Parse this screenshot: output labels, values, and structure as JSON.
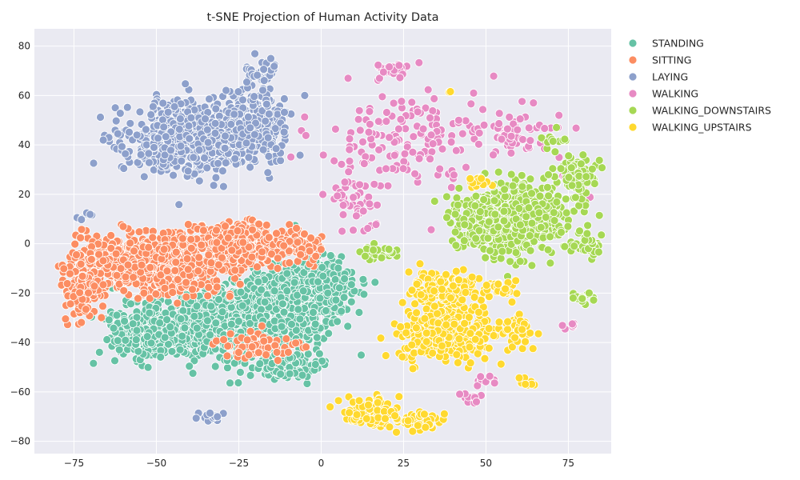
{
  "chart_data": {
    "type": "scatter",
    "title": "t-SNE Projection of Human Activity Data",
    "xlabel": "",
    "ylabel": "",
    "xlim": [
      -87,
      88
    ],
    "ylim": [
      -85,
      87
    ],
    "x_ticks": [
      -75,
      -50,
      -25,
      0,
      25,
      50,
      75
    ],
    "y_ticks": [
      -80,
      -60,
      -40,
      -20,
      0,
      20,
      40,
      60,
      80
    ],
    "x_tick_labels": [
      "−75",
      "−50",
      "−25",
      "0",
      "25",
      "50",
      "75"
    ],
    "y_tick_labels": [
      "−80",
      "−60",
      "−40",
      "−20",
      "0",
      "20",
      "40",
      "60",
      "80"
    ],
    "grid": true,
    "legend_position": "outside-right-top",
    "background": "#eaeaf2",
    "series": [
      {
        "name": "STANDING",
        "color": "#66c2a5",
        "clusters": [
          {
            "cx": -30,
            "cy": -32,
            "sx": 20,
            "sy": 12,
            "n": 950
          },
          {
            "cx": -8,
            "cy": -22,
            "sx": 12,
            "sy": 14,
            "n": 450
          },
          {
            "cx": -55,
            "cy": -38,
            "sx": 9,
            "sy": 7,
            "n": 200
          },
          {
            "cx": 2,
            "cy": -18,
            "sx": 6,
            "sy": 10,
            "n": 120
          },
          {
            "cx": -10,
            "cy": -50,
            "sx": 10,
            "sy": 5,
            "n": 80
          }
        ]
      },
      {
        "name": "SITTING",
        "color": "#fc8d62",
        "clusters": [
          {
            "cx": -50,
            "cy": -8,
            "sx": 17,
            "sy": 9,
            "n": 850
          },
          {
            "cx": -25,
            "cy": 0,
            "sx": 12,
            "sy": 6,
            "n": 450
          },
          {
            "cx": -72,
            "cy": -18,
            "sx": 5,
            "sy": 12,
            "n": 150
          },
          {
            "cx": -5,
            "cy": -2,
            "sx": 5,
            "sy": 5,
            "n": 80
          },
          {
            "cx": -18,
            "cy": -42,
            "sx": 10,
            "sy": 5,
            "n": 60
          }
        ]
      },
      {
        "name": "LAYING",
        "color": "#8da0cb",
        "clusters": [
          {
            "cx": -40,
            "cy": 43,
            "sx": 15,
            "sy": 11,
            "n": 700
          },
          {
            "cx": -20,
            "cy": 48,
            "sx": 8,
            "sy": 12,
            "n": 300
          },
          {
            "cx": -18,
            "cy": 70,
            "sx": 4,
            "sy": 4,
            "n": 50
          },
          {
            "cx": -33,
            "cy": -70,
            "sx": 3,
            "sy": 2,
            "n": 14
          },
          {
            "cx": -73,
            "cy": 11,
            "sx": 2,
            "sy": 1.5,
            "n": 8
          }
        ]
      },
      {
        "name": "WALKING",
        "color": "#e78ac3",
        "clusters": [
          {
            "cx": 28,
            "cy": 42,
            "sx": 20,
            "sy": 16,
            "n": 150
          },
          {
            "cx": 10,
            "cy": 15,
            "sx": 6,
            "sy": 12,
            "n": 50
          },
          {
            "cx": 22,
            "cy": 70,
            "sx": 4,
            "sy": 3,
            "n": 25
          },
          {
            "cx": 60,
            "cy": 45,
            "sx": 10,
            "sy": 8,
            "n": 60
          },
          {
            "cx": 78,
            "cy": 25,
            "sx": 4,
            "sy": 4,
            "n": 20
          },
          {
            "cx": 50,
            "cy": -56,
            "sx": 3,
            "sy": 2,
            "n": 12
          },
          {
            "cx": 45,
            "cy": -63,
            "sx": 3,
            "sy": 2,
            "n": 12
          },
          {
            "cx": 75,
            "cy": -33,
            "sx": 2,
            "sy": 1.5,
            "n": 6
          }
        ]
      },
      {
        "name": "WALKING_DOWNSTAIRS",
        "color": "#a6d854",
        "clusters": [
          {
            "cx": 58,
            "cy": 10,
            "sx": 14,
            "sy": 11,
            "n": 650
          },
          {
            "cx": 78,
            "cy": 28,
            "sx": 5,
            "sy": 6,
            "n": 80
          },
          {
            "cx": 82,
            "cy": 0,
            "sx": 4,
            "sy": 4,
            "n": 40
          },
          {
            "cx": 18,
            "cy": -4,
            "sx": 5,
            "sy": 2,
            "n": 40
          },
          {
            "cx": 70,
            "cy": 42,
            "sx": 3,
            "sy": 3,
            "n": 15
          },
          {
            "cx": 78,
            "cy": -22,
            "sx": 3,
            "sy": 2,
            "n": 14
          }
        ]
      },
      {
        "name": "WALKING_UPSTAIRS",
        "color": "#ffd92f",
        "clusters": [
          {
            "cx": 38,
            "cy": -35,
            "sx": 10,
            "sy": 9,
            "n": 450
          },
          {
            "cx": 38,
            "cy": -18,
            "sx": 9,
            "sy": 5,
            "n": 150
          },
          {
            "cx": 15,
            "cy": -68,
            "sx": 6,
            "sy": 5,
            "n": 120
          },
          {
            "cx": 30,
            "cy": -72,
            "sx": 6,
            "sy": 3,
            "n": 60
          },
          {
            "cx": 60,
            "cy": -35,
            "sx": 5,
            "sy": 8,
            "n": 50
          },
          {
            "cx": 55,
            "cy": -18,
            "sx": 4,
            "sy": 3,
            "n": 30
          },
          {
            "cx": 48,
            "cy": 25,
            "sx": 3,
            "sy": 3,
            "n": 15
          },
          {
            "cx": 63,
            "cy": -56,
            "sx": 2,
            "sy": 2,
            "n": 10
          },
          {
            "cx": 39,
            "cy": 62,
            "sx": 1,
            "sy": 1,
            "n": 2
          }
        ]
      }
    ]
  }
}
